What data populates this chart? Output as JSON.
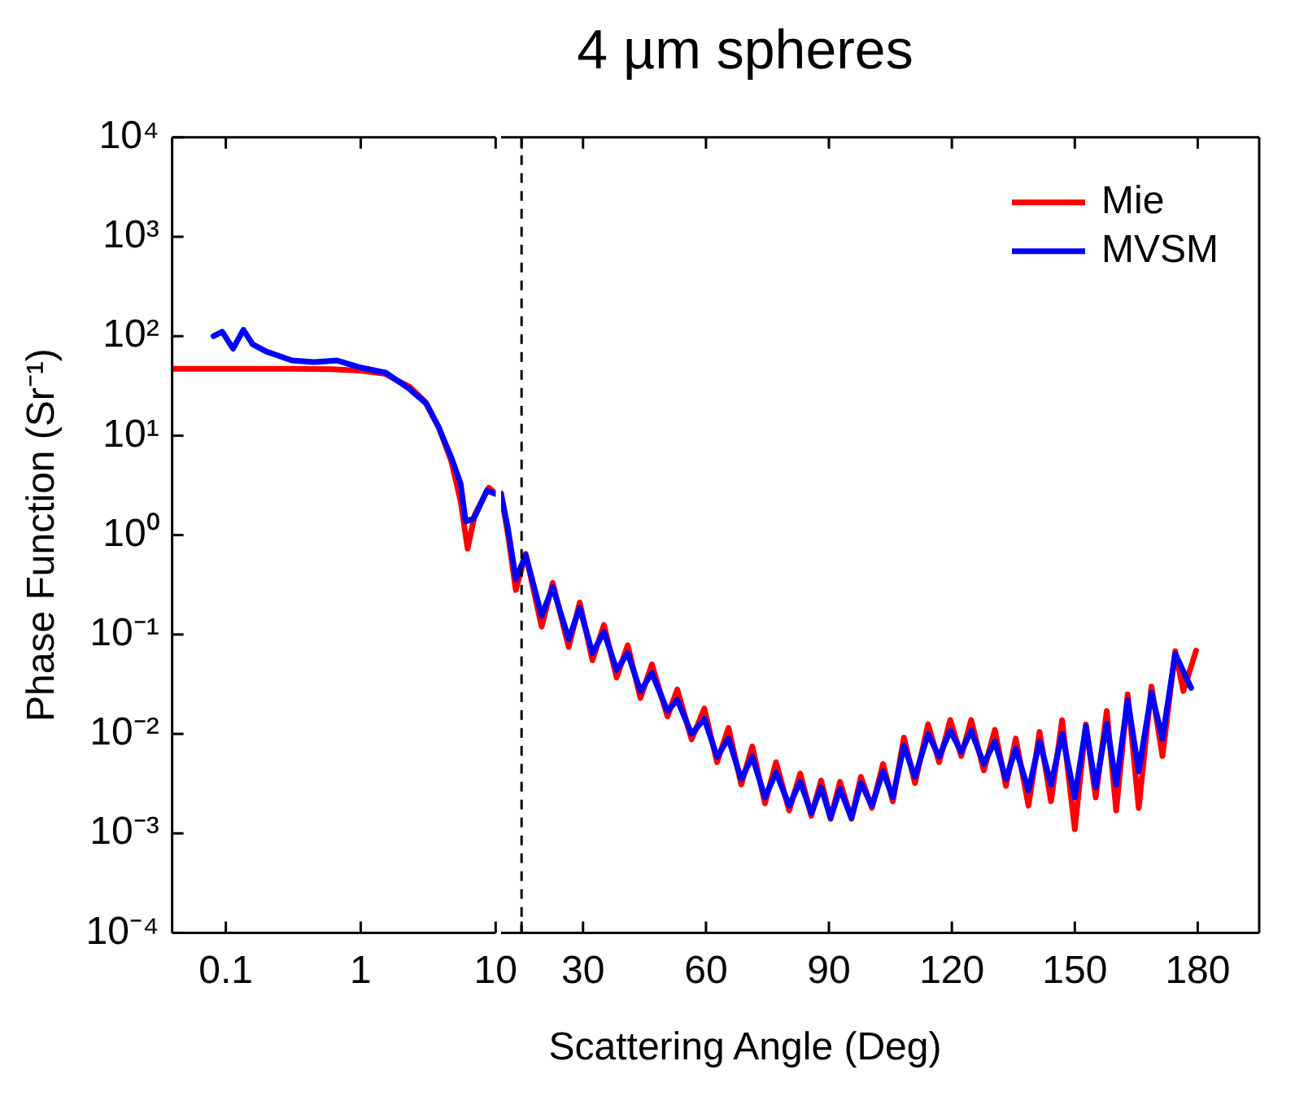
{
  "chart_data": [
    {
      "type": "line",
      "ylabel": "Phase Function (Sr⁻¹)",
      "log": "xy",
      "grid": false,
      "marker": "none",
      "line_style": "solid",
      "xlim": [
        0.04,
        10
      ],
      "xticks": [
        0.1,
        1,
        10
      ],
      "ylim": [
        0.0001,
        10000
      ],
      "yticks": [
        {
          "value": 0.0001,
          "label": "10⁻⁴"
        },
        {
          "value": 0.001,
          "label": "10⁻³"
        },
        {
          "value": 0.01,
          "label": "10⁻²"
        },
        {
          "value": 0.1,
          "label": "10⁻¹"
        },
        {
          "value": 1,
          "label": "10⁰"
        },
        {
          "value": 10,
          "label": "10¹"
        },
        {
          "value": 100,
          "label": "10²"
        },
        {
          "value": 1000,
          "label": "10³"
        },
        {
          "value": 10000,
          "label": "10⁴"
        }
      ],
      "series": [
        {
          "color": "#ff0000",
          "x": [
            0.04,
            0.1,
            0.3,
            0.6,
            1,
            1.5,
            2.3,
            3,
            3.8,
            4.7,
            5.5,
            6.2,
            7,
            8.9,
            10
          ],
          "values": [
            47,
            47,
            47,
            46.5,
            45,
            42,
            31,
            22,
            12,
            5.5,
            2.2,
            0.73,
            1.6,
            3.0,
            2.6
          ]
        },
        {
          "color": "#0000ff",
          "x": [
            0.081,
            0.094,
            0.113,
            0.135,
            0.158,
            0.2,
            0.31,
            0.45,
            0.67,
            0.97,
            1.53,
            2.26,
            3.07,
            3.8,
            4.7,
            5.5,
            6.0,
            6.9,
            8.6,
            10
          ],
          "values": [
            100,
            111,
            75,
            116,
            83,
            70,
            57,
            55,
            57,
            49,
            43,
            30,
            21,
            12,
            6,
            3.3,
            1.37,
            1.47,
            2.8,
            2.6
          ]
        }
      ]
    },
    {
      "type": "line",
      "title": "4 µm spheres",
      "xlabel": "Scattering Angle (Deg)",
      "log": "y",
      "grid": false,
      "legend": "top right",
      "marker": "none",
      "line_style": "solid",
      "tick_labels": "x",
      "xlim": [
        10,
        195
      ],
      "xticks": [
        {
          "value": 15,
          "label": null
        },
        30,
        60,
        90,
        120,
        150,
        180
      ],
      "ylim": [
        0.0001,
        10000
      ],
      "ref_lines": [
        {
          "axis": "x",
          "value": 15,
          "color": "#000000",
          "line_style": "dashed"
        }
      ],
      "series": [
        {
          "name": "Mie",
          "color": "#ff0000",
          "x": [
            10,
            11.7,
            13.6,
            16.0,
            19.9,
            22.6,
            26.5,
            29.2,
            32.3,
            35.1,
            38.2,
            40.9,
            44.0,
            46.8,
            50.6,
            53.0,
            56.5,
            59.6,
            62.7,
            65.5,
            68.6,
            71.3,
            74.4,
            77.1,
            80.3,
            83.0,
            85.7,
            88.1,
            90.4,
            92.7,
            95.5,
            97.8,
            100.5,
            103.2,
            105.6,
            108.3,
            111.0,
            114.2,
            116.9,
            119.6,
            122.3,
            124.7,
            127.8,
            130.5,
            133.2,
            135.6,
            138.7,
            141.4,
            144.2,
            146.9,
            150.0,
            152.7,
            155.1,
            157.8,
            160.1,
            162.9,
            165.6,
            168.7,
            171.4,
            174.5,
            176.5,
            179.6
          ],
          "values": [
            2.6,
            1.0,
            0.28,
            0.65,
            0.12,
            0.33,
            0.075,
            0.21,
            0.055,
            0.125,
            0.037,
            0.078,
            0.023,
            0.05,
            0.015,
            0.028,
            0.0088,
            0.018,
            0.0052,
            0.0115,
            0.0031,
            0.0075,
            0.002,
            0.0052,
            0.0017,
            0.004,
            0.0015,
            0.0034,
            0.0014,
            0.0033,
            0.0014,
            0.0037,
            0.0018,
            0.005,
            0.0021,
            0.0092,
            0.0032,
            0.0125,
            0.0052,
            0.0138,
            0.006,
            0.0138,
            0.0043,
            0.011,
            0.003,
            0.009,
            0.0019,
            0.0105,
            0.0021,
            0.0138,
            0.0011,
            0.0125,
            0.0023,
            0.017,
            0.0017,
            0.025,
            0.0018,
            0.03,
            0.006,
            0.068,
            0.027,
            0.069
          ]
        },
        {
          "name": "MVSM",
          "color": "#0000ff",
          "x": [
            10,
            11.7,
            13.6,
            16.0,
            19.9,
            22.6,
            26.5,
            29.2,
            32.3,
            35.1,
            38.2,
            40.9,
            44.0,
            46.8,
            50.6,
            53.0,
            56.5,
            59.6,
            62.7,
            65.5,
            68.6,
            71.3,
            74.4,
            77.1,
            80.3,
            83.0,
            85.7,
            88.1,
            90.4,
            92.7,
            95.5,
            97.8,
            100.5,
            103.2,
            105.6,
            108.3,
            111.0,
            114.2,
            116.9,
            119.6,
            122.3,
            124.7,
            127.8,
            130.5,
            133.2,
            135.6,
            138.7,
            141.4,
            144.2,
            146.9,
            150.0,
            152.7,
            155.1,
            157.8,
            160.1,
            162.9,
            165.6,
            168.7,
            171.4,
            174.5,
            178.4
          ],
          "values": [
            2.6,
            1.15,
            0.36,
            0.63,
            0.155,
            0.3,
            0.09,
            0.185,
            0.065,
            0.106,
            0.044,
            0.065,
            0.027,
            0.041,
            0.017,
            0.022,
            0.01,
            0.0142,
            0.0059,
            0.009,
            0.0035,
            0.0059,
            0.0023,
            0.0041,
            0.0019,
            0.0033,
            0.0016,
            0.0029,
            0.00143,
            0.0028,
            0.00143,
            0.0032,
            0.0019,
            0.0042,
            0.0023,
            0.0076,
            0.0037,
            0.01,
            0.0059,
            0.0108,
            0.0066,
            0.0108,
            0.005,
            0.0084,
            0.0035,
            0.0071,
            0.0027,
            0.0084,
            0.0031,
            0.01,
            0.0023,
            0.0119,
            0.0029,
            0.0127,
            0.0031,
            0.022,
            0.0042,
            0.026,
            0.009,
            0.064,
            0.029
          ]
        }
      ]
    }
  ]
}
